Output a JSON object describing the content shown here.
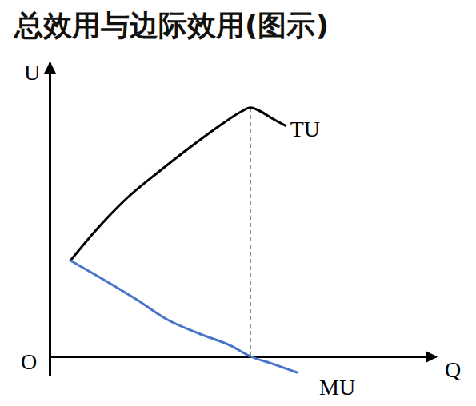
{
  "chart_data": {
    "type": "line",
    "title": "总效用与边际效用(图示)",
    "x_label": "Q",
    "y_label": "U",
    "origin_label": "O",
    "xlim": [
      0,
      10
    ],
    "ylim": [
      -0.6,
      9.2
    ],
    "xticks": [],
    "yticks": [],
    "tick_labels": false,
    "grid": false,
    "series": [
      {
        "name": "TU",
        "color": "#000000",
        "x": [
          0.54,
          1.2,
          2.0,
          2.85,
          3.7,
          4.5,
          4.95,
          5.2,
          5.4,
          5.75,
          6.1
        ],
        "values": [
          3.0,
          3.95,
          4.95,
          5.8,
          6.6,
          7.3,
          7.65,
          7.78,
          7.7,
          7.45,
          7.22
        ]
      },
      {
        "name": "MU",
        "color": "#4a74c9",
        "x": [
          0.54,
          1.4,
          2.25,
          3.05,
          3.9,
          4.7,
          5.2,
          5.75,
          6.4
        ],
        "values": [
          3.0,
          2.4,
          1.78,
          1.15,
          0.7,
          0.33,
          0,
          -0.22,
          -0.5
        ]
      }
    ]
  }
}
